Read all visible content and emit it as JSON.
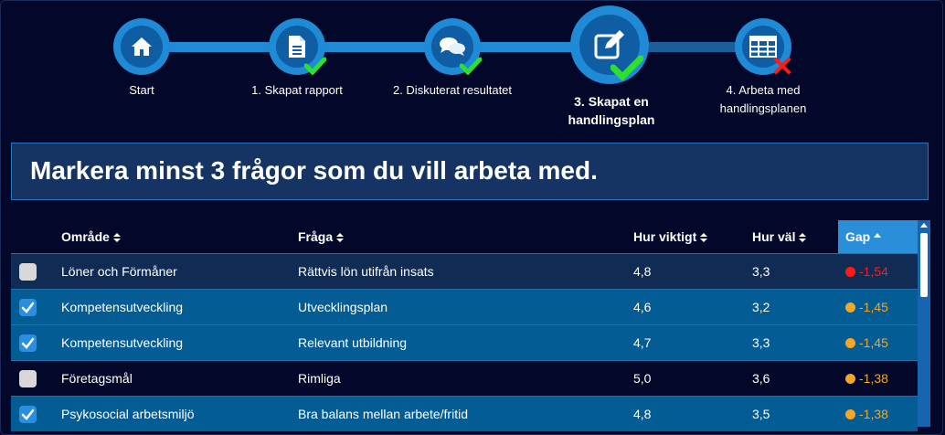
{
  "stepper": {
    "steps": [
      {
        "label": "Start",
        "icon": "home-icon",
        "status": "none"
      },
      {
        "label": "1. Skapat rapport",
        "icon": "document-icon",
        "status": "done"
      },
      {
        "label": "2. Diskuterat resultatet",
        "icon": "chat-icon",
        "status": "done"
      },
      {
        "label": "3. Skapat en handlingsplan",
        "icon": "edit-icon",
        "status": "done",
        "active": true
      },
      {
        "label": "4. Arbeta med handlingsplanen",
        "icon": "table-icon",
        "status": "not-done"
      }
    ]
  },
  "heading": "Markera minst 3 frågor som du vill arbeta med.",
  "table": {
    "columns": {
      "area": "Område",
      "question": "Fråga",
      "importance": "Hur viktigt",
      "how_well": "Hur väl",
      "gap": "Gap"
    },
    "rows": [
      {
        "checked": false,
        "area": "Löner och Förmåner",
        "question": "Rättvis lön utifrån insats",
        "importance": "4,8",
        "how_well": "3,3",
        "gap": "-1,54",
        "gap_color": "#ff1a1a"
      },
      {
        "checked": true,
        "area": "Kompetensutveckling",
        "question": "Utvecklingsplan",
        "importance": "4,6",
        "how_well": "3,2",
        "gap": "-1,45",
        "gap_color": "#f5a623"
      },
      {
        "checked": true,
        "area": "Kompetensutveckling",
        "question": "Relevant utbildning",
        "importance": "4,7",
        "how_well": "3,3",
        "gap": "-1,45",
        "gap_color": "#f5a623"
      },
      {
        "checked": false,
        "area": "Företagsmål",
        "question": "Rimliga",
        "importance": "5,0",
        "how_well": "3,6",
        "gap": "-1,38",
        "gap_color": "#f5a623"
      },
      {
        "checked": true,
        "area": "Psykosocial arbetsmiljö",
        "question": "Bra balans mellan arbete/fritid",
        "importance": "4,8",
        "how_well": "3,5",
        "gap": "-1,38",
        "gap_color": "#f5a623"
      }
    ]
  },
  "colors": {
    "background": "#03082a",
    "accent": "#1f8ad6",
    "selected_row": "#045c95",
    "check_green": "#2ee02e",
    "cross_red": "#ff1a1a"
  }
}
